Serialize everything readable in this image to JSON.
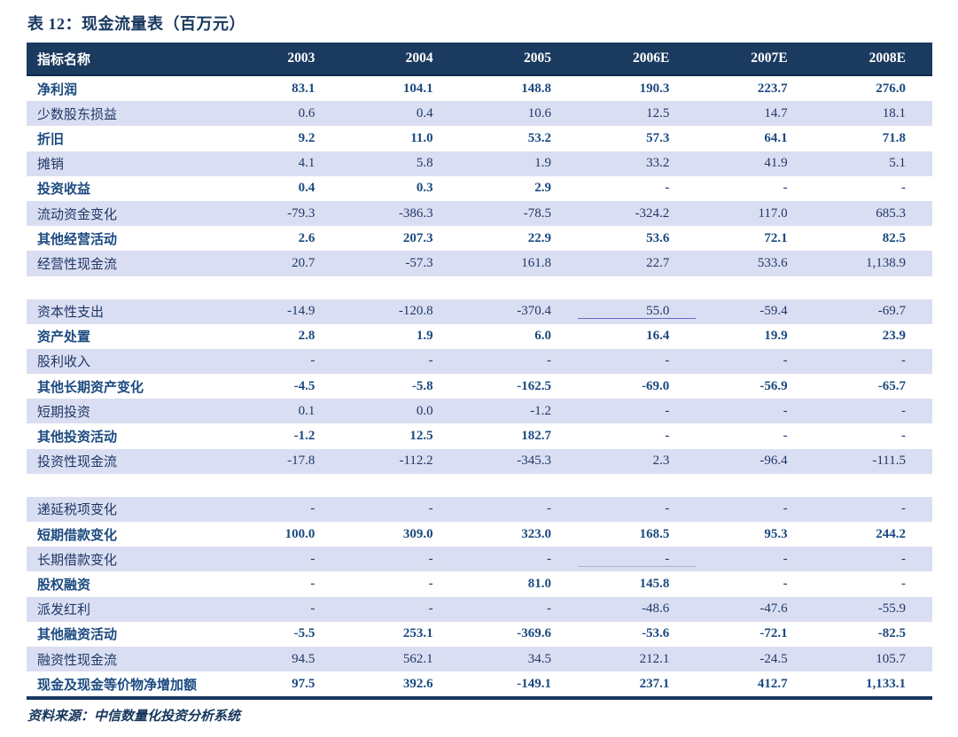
{
  "title": "表 12：现金流量表（百万元）",
  "source_note": "资料来源：中信数量化投资分析系统",
  "colors": {
    "header_bg": "#1b3a5f",
    "header_text": "#ffffff",
    "shaded_row_bg": "#dadef2",
    "plain_row_text": "#1b4a80",
    "shaded_row_text": "#1f3766",
    "title_text": "#17375e",
    "bottom_rule": "#17375e"
  },
  "table": {
    "columns": [
      "指标名称",
      "2003",
      "2004",
      "2005",
      "2006E",
      "2007E",
      "2008E"
    ],
    "blocks": [
      {
        "rows": [
          {
            "label": "净利润",
            "values": [
              "83.1",
              "104.1",
              "148.8",
              "190.3",
              "223.7",
              "276.0"
            ]
          },
          {
            "label": "少数股东损益",
            "values": [
              "0.6",
              "0.4",
              "10.6",
              "12.5",
              "14.7",
              "18.1"
            ]
          },
          {
            "label": "折旧",
            "values": [
              "9.2",
              "11.0",
              "53.2",
              "57.3",
              "64.1",
              "71.8"
            ]
          },
          {
            "label": "摊销",
            "values": [
              "4.1",
              "5.8",
              "1.9",
              "33.2",
              "41.9",
              "5.1"
            ]
          },
          {
            "label": "投资收益",
            "values": [
              "0.4",
              "0.3",
              "2.9",
              "-",
              "-",
              "-"
            ]
          },
          {
            "label": "流动资金变化",
            "values": [
              "-79.3",
              "-386.3",
              "-78.5",
              "-324.2",
              "117.0",
              "685.3"
            ]
          },
          {
            "label": "其他经营活动",
            "values": [
              "2.6",
              "207.3",
              "22.9",
              "53.6",
              "72.1",
              "82.5"
            ]
          },
          {
            "label": "经营性现金流",
            "values": [
              "20.7",
              "-57.3",
              "161.8",
              "22.7",
              "533.6",
              "1,138.9"
            ]
          }
        ]
      },
      {
        "rows": [
          {
            "label": "资本性支出",
            "values": [
              "-14.9",
              "-120.8",
              "-370.4",
              "55.0",
              "-59.4",
              "-69.7"
            ],
            "underline": {
              "index": 3,
              "tone": "strong"
            }
          },
          {
            "label": "资产处置",
            "values": [
              "2.8",
              "1.9",
              "6.0",
              "16.4",
              "19.9",
              "23.9"
            ]
          },
          {
            "label": "股利收入",
            "values": [
              "-",
              "-",
              "-",
              "-",
              "-",
              "-"
            ]
          },
          {
            "label": "其他长期资产变化",
            "values": [
              "-4.5",
              "-5.8",
              "-162.5",
              "-69.0",
              "-56.9",
              "-65.7"
            ]
          },
          {
            "label": "短期投资",
            "values": [
              "0.1",
              "0.0",
              "-1.2",
              "-",
              "-",
              "-"
            ]
          },
          {
            "label": "其他投资活动",
            "values": [
              "-1.2",
              "12.5",
              "182.7",
              "-",
              "-",
              "-"
            ]
          },
          {
            "label": "投资性现金流",
            "values": [
              "-17.8",
              "-112.2",
              "-345.3",
              "2.3",
              "-96.4",
              "-111.5"
            ]
          }
        ]
      },
      {
        "rows": [
          {
            "label": "递延税项变化",
            "values": [
              "-",
              "-",
              "-",
              "-",
              "-",
              "-"
            ]
          },
          {
            "label": "短期借款变化",
            "values": [
              "100.0",
              "309.0",
              "323.0",
              "168.5",
              "95.3",
              "244.2"
            ]
          },
          {
            "label": "长期借款变化",
            "values": [
              "-",
              "-",
              "-",
              "-",
              "-",
              "-"
            ],
            "underline": {
              "index": 3,
              "tone": "faint"
            }
          },
          {
            "label": "股权融资",
            "values": [
              "-",
              "-",
              "81.0",
              "145.8",
              "-",
              "-"
            ]
          },
          {
            "label": "派发红利",
            "values": [
              "-",
              "-",
              "-",
              "-48.6",
              "-47.6",
              "-55.9"
            ]
          },
          {
            "label": "其他融资活动",
            "values": [
              "-5.5",
              "253.1",
              "-369.6",
              "-53.6",
              "-72.1",
              "-82.5"
            ]
          },
          {
            "label": "融资性现金流",
            "values": [
              "94.5",
              "562.1",
              "34.5",
              "212.1",
              "-24.5",
              "105.7"
            ]
          },
          {
            "label": "现金及现金等价物净增加额",
            "values": [
              "97.5",
              "392.6",
              "-149.1",
              "237.1",
              "412.7",
              "1,133.1"
            ]
          }
        ]
      }
    ]
  }
}
